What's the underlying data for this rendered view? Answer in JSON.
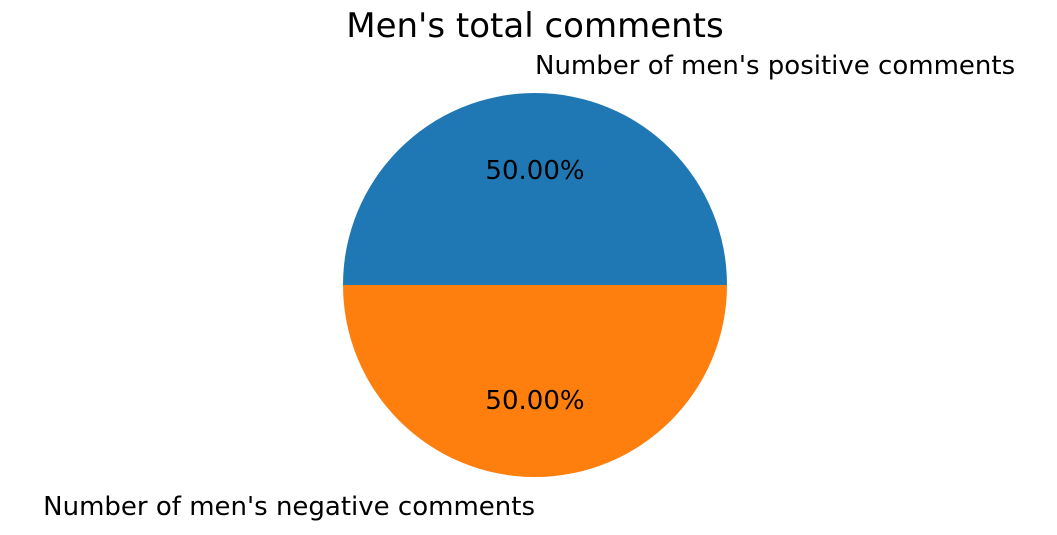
{
  "chart_data": {
    "type": "pie",
    "title": "Men's total comments",
    "slices": [
      {
        "label": "Number of men's positive comments",
        "value": 50,
        "pct_label": "50.00%",
        "color": "#1f77b4"
      },
      {
        "label": "Number of men's negative comments",
        "value": 50,
        "pct_label": "50.00%",
        "color": "#ff7f0e"
      }
    ],
    "start_angle_deg": 0,
    "direction": "counterclockwise"
  }
}
